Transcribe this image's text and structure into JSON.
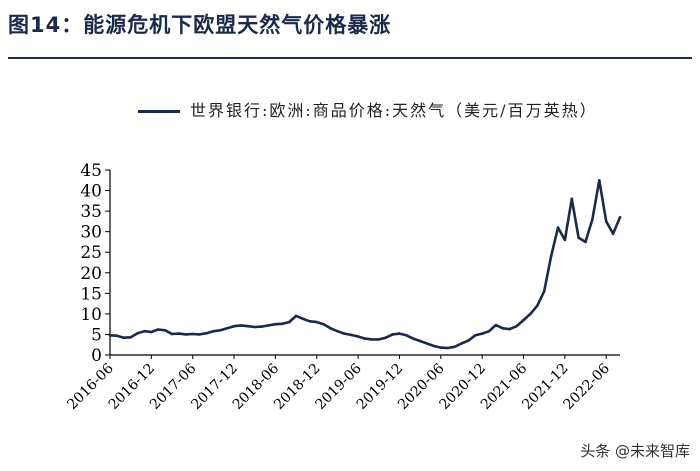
{
  "header": {
    "title": "图14：能源危机下欧盟天然气价格暴涨"
  },
  "watermark": {
    "text": "头条 @未来智库"
  },
  "chart_data": {
    "type": "line",
    "title": "图14：能源危机下欧盟天然气价格暴涨",
    "xlabel": "",
    "ylabel": "",
    "ylim": [
      0,
      45
    ],
    "yticks": [
      0,
      5,
      10,
      15,
      20,
      25,
      30,
      35,
      40,
      45
    ],
    "grid": false,
    "legend": "top",
    "x_range": [
      "2016-06",
      "2022-08"
    ],
    "x_tick_labels": [
      "2016-06",
      "2016-12",
      "2017-06",
      "2017-12",
      "2018-06",
      "2018-12",
      "2019-06",
      "2019-12",
      "2020-06",
      "2020-12",
      "2021-06",
      "2021-12",
      "2022-06"
    ],
    "series": [
      {
        "name": "世界银行:欧洲:商品价格:天然气（美元/百万英热）",
        "color": "#1b2a4a",
        "points": [
          [
            "2016-06",
            4.8
          ],
          [
            "2016-07",
            4.7
          ],
          [
            "2016-08",
            4.2
          ],
          [
            "2016-09",
            4.3
          ],
          [
            "2016-10",
            5.3
          ],
          [
            "2016-11",
            5.8
          ],
          [
            "2016-12",
            5.6
          ],
          [
            "2017-01",
            6.2
          ],
          [
            "2017-02",
            6.0
          ],
          [
            "2017-03",
            5.1
          ],
          [
            "2017-04",
            5.2
          ],
          [
            "2017-05",
            5.0
          ],
          [
            "2017-06",
            5.1
          ],
          [
            "2017-07",
            5.0
          ],
          [
            "2017-08",
            5.3
          ],
          [
            "2017-09",
            5.8
          ],
          [
            "2017-10",
            6.0
          ],
          [
            "2017-11",
            6.5
          ],
          [
            "2017-12",
            7.0
          ],
          [
            "2018-01",
            7.2
          ],
          [
            "2018-02",
            7.0
          ],
          [
            "2018-03",
            6.8
          ],
          [
            "2018-04",
            6.9
          ],
          [
            "2018-05",
            7.2
          ],
          [
            "2018-06",
            7.5
          ],
          [
            "2018-07",
            7.6
          ],
          [
            "2018-08",
            8.0
          ],
          [
            "2018-09",
            9.5
          ],
          [
            "2018-10",
            8.8
          ],
          [
            "2018-11",
            8.2
          ],
          [
            "2018-12",
            8.0
          ],
          [
            "2019-01",
            7.5
          ],
          [
            "2019-02",
            6.5
          ],
          [
            "2019-03",
            5.8
          ],
          [
            "2019-04",
            5.2
          ],
          [
            "2019-05",
            4.9
          ],
          [
            "2019-06",
            4.5
          ],
          [
            "2019-07",
            4.0
          ],
          [
            "2019-08",
            3.8
          ],
          [
            "2019-09",
            3.8
          ],
          [
            "2019-10",
            4.2
          ],
          [
            "2019-11",
            5.0
          ],
          [
            "2019-12",
            5.2
          ],
          [
            "2020-01",
            4.8
          ],
          [
            "2020-02",
            4.0
          ],
          [
            "2020-03",
            3.4
          ],
          [
            "2020-04",
            2.8
          ],
          [
            "2020-05",
            2.2
          ],
          [
            "2020-06",
            1.8
          ],
          [
            "2020-07",
            1.7
          ],
          [
            "2020-08",
            2.0
          ],
          [
            "2020-09",
            2.8
          ],
          [
            "2020-10",
            3.5
          ],
          [
            "2020-11",
            4.8
          ],
          [
            "2020-12",
            5.2
          ],
          [
            "2021-01",
            5.8
          ],
          [
            "2021-02",
            7.3
          ],
          [
            "2021-03",
            6.5
          ],
          [
            "2021-04",
            6.3
          ],
          [
            "2021-05",
            7.0
          ],
          [
            "2021-06",
            8.5
          ],
          [
            "2021-07",
            10.0
          ],
          [
            "2021-08",
            12.0
          ],
          [
            "2021-09",
            15.5
          ],
          [
            "2021-10",
            24.0
          ],
          [
            "2021-11",
            31.0
          ],
          [
            "2021-12",
            28.0
          ],
          [
            "2022-01",
            38.0
          ],
          [
            "2022-02",
            28.5
          ],
          [
            "2022-03",
            27.5
          ],
          [
            "2022-04",
            33.0
          ],
          [
            "2022-05",
            42.5
          ],
          [
            "2022-06",
            32.5
          ],
          [
            "2022-07",
            29.5
          ],
          [
            "2022-08",
            33.5
          ]
        ]
      }
    ]
  }
}
